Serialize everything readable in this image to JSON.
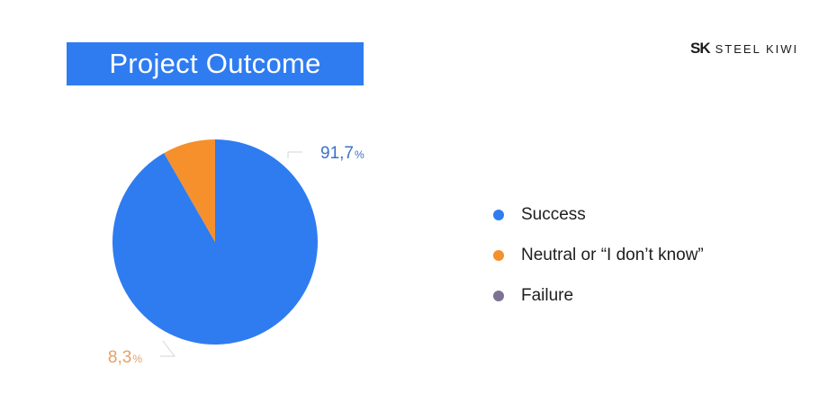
{
  "title": "Project Outcome",
  "brand": {
    "mark": "SK",
    "name": "STEEL KIWI",
    "logo_icon": "steel-kiwi-logo-icon"
  },
  "chart_data": {
    "type": "pie",
    "title": "Project Outcome",
    "slices": [
      {
        "name": "Success",
        "value": 91.7,
        "label_number": "91,7",
        "label_unit": "%",
        "color": "#2f7cf0"
      },
      {
        "name": "Neutral or “I don’t know”",
        "value": 8.3,
        "label_number": "8,3",
        "label_unit": "%",
        "color": "#f5902d"
      },
      {
        "name": "Failure",
        "value": 0,
        "label_number": "",
        "label_unit": "",
        "color": "#7d7294"
      }
    ],
    "legend": "right",
    "data_label_colors": [
      "#3a73c4",
      "#e6a064"
    ]
  }
}
